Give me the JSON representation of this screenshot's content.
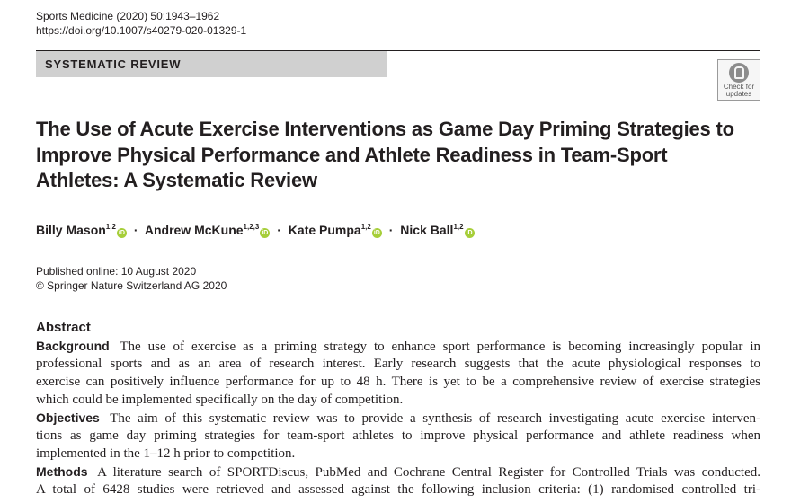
{
  "journal": {
    "citation": "Sports Medicine (2020) 50:1943–1962",
    "doi": "https://doi.org/10.1007/s40279-020-01329-1"
  },
  "article_type": "SYSTEMATIC REVIEW",
  "check_badge": {
    "line1": "Check for",
    "line2": "updates"
  },
  "title": "The Use of Acute Exercise Interventions as Game Day Priming Strategies to Improve Physical Performance and Athlete Readiness in Team-Sport Athletes: A Systematic Review",
  "authors": [
    {
      "name": "Billy Mason",
      "affil": "1,2"
    },
    {
      "name": "Andrew McKune",
      "affil": "1,2,3"
    },
    {
      "name": "Kate Pumpa",
      "affil": "1,2"
    },
    {
      "name": "Nick Ball",
      "affil": "1,2"
    }
  ],
  "orcid_icon": "orcid-icon",
  "orcid_color": "#a6ce39",
  "published": "Published online: 10 August 2020",
  "copyright": "© Springer Nature Switzerland AG 2020",
  "abstract": {
    "heading": "Abstract",
    "background": {
      "label": "Background",
      "lines": [
        "The use of exercise as a priming strategy to enhance sport performance is becoming increasingly popular in",
        "professional sports and as an area of research interest. Early research suggests that the acute physiological responses to",
        "exercise can positively influence performance for up to 48 h. There is yet to be a comprehensive review of exercise strategies",
        "which could be implemented specifically on the day of competition."
      ]
    },
    "objectives": {
      "label": "Objectives",
      "lines": [
        "The aim of this systematic review was to provide a synthesis of research investigating acute exercise interven-",
        "tions as game day priming strategies for team-sport athletes to improve physical performance and athlete readiness when",
        "implemented in the 1–12 h prior to competition."
      ]
    },
    "methods": {
      "label": "Methods",
      "lines": [
        "A literature search of SPORTDiscus, PubMed and Cochrane Central Register for Controlled Trials was conducted.",
        "A total of 6428 studies were retrieved and assessed against the following inclusion criteria: (1) randomised controlled tri-"
      ]
    }
  }
}
